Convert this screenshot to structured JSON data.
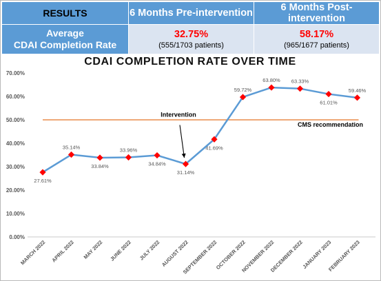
{
  "results_table": {
    "header": {
      "label": "RESULTS",
      "pre": "6 Months Pre-intervention",
      "post": "6 Months Post-intervention"
    },
    "row": {
      "label_line1": "Average",
      "label_line2": "CDAI Completion Rate",
      "pre_value": "32.75%",
      "pre_detail": "(555/1703 patients)",
      "post_value": "58.17%",
      "post_detail": "(965/1677 patients)"
    }
  },
  "colors": {
    "header_blue": "#5b9bd5",
    "cell_light": "#dbe4f1",
    "line": "#5b9bd5",
    "marker": "#ff0000",
    "reference_line": "#e88b4a",
    "value_highlight": "#ff0000"
  },
  "chart_data": {
    "type": "line",
    "title": "CDAI COMPLETION RATE OVER TIME",
    "xlabel": "",
    "ylabel": "",
    "categories": [
      "MARCH 2022",
      "APRIL 2022",
      "MAY 2022",
      "JUNE 2022",
      "JULY 2022",
      "AUGUST 2022",
      "SEPTEMBER 2022",
      "OCTOBER 2022",
      "NOVEMBER 2022",
      "DECEMBER 2022",
      "JANUARY 2023",
      "FEBRUARY 2023"
    ],
    "series": [
      {
        "values": [
          27.61,
          35.14,
          33.84,
          33.96,
          34.84,
          31.14,
          41.69,
          59.72,
          63.8,
          63.33,
          61.01,
          59.46
        ],
        "labels": [
          "27.61%",
          "35.14%",
          "33.84%",
          "33.96%",
          "34.84%",
          "31.14%",
          "41.69%",
          "59.72%",
          "63.80%",
          "63.33%",
          "61.01%",
          "59.46%"
        ],
        "label_side": [
          "below",
          "above",
          "below",
          "above",
          "below",
          "below",
          "below",
          "above",
          "above",
          "above",
          "below",
          "above"
        ]
      }
    ],
    "ylim": [
      0,
      70
    ],
    "yticks": [
      0,
      10,
      20,
      30,
      40,
      50,
      60,
      70
    ],
    "ytick_labels": [
      "0.00%",
      "10.00%",
      "20.00%",
      "30.00%",
      "40.00%",
      "50.00%",
      "60.00%",
      "70.00%"
    ],
    "grid": false,
    "legend": "none",
    "reference_line": {
      "value": 50,
      "label": "CMS recommendation"
    },
    "annotation": {
      "text": "Intervention",
      "points_to": "AUGUST 2022"
    }
  }
}
